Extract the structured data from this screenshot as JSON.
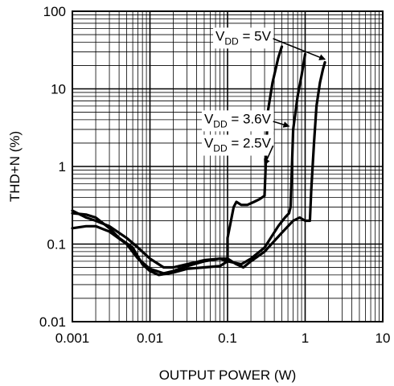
{
  "chart_data": {
    "type": "line",
    "xlabel": "OUTPUT POWER (W)",
    "ylabel": "THD+N (%)",
    "xscale": "log",
    "yscale": "log",
    "xlim": [
      0.001,
      10
    ],
    "ylim": [
      0.01,
      100
    ],
    "grid": true,
    "xticks": [
      {
        "value": 0.001,
        "label": "0.001"
      },
      {
        "value": 0.01,
        "label": "0.01"
      },
      {
        "value": 0.1,
        "label": "0.1"
      },
      {
        "value": 1,
        "label": "1"
      },
      {
        "value": 10,
        "label": "10"
      }
    ],
    "yticks": [
      {
        "value": 0.01,
        "label": "0.01"
      },
      {
        "value": 0.1,
        "label": "0.1"
      },
      {
        "value": 1,
        "label": "1"
      },
      {
        "value": 10,
        "label": "10"
      },
      {
        "value": 100,
        "label": "100"
      }
    ],
    "series": [
      {
        "name_main": "V",
        "name_sub": "DD",
        "name_rest": " = 5V",
        "label_at": [
          0.07,
          42
        ],
        "arrow_to": [
          1.8,
          24
        ],
        "points": [
          [
            0.001,
            0.16
          ],
          [
            0.0015,
            0.17
          ],
          [
            0.002,
            0.17
          ],
          [
            0.003,
            0.145
          ],
          [
            0.005,
            0.1
          ],
          [
            0.007,
            0.065
          ],
          [
            0.01,
            0.048
          ],
          [
            0.015,
            0.042
          ],
          [
            0.02,
            0.045
          ],
          [
            0.03,
            0.052
          ],
          [
            0.05,
            0.06
          ],
          [
            0.08,
            0.065
          ],
          [
            0.1,
            0.065
          ],
          [
            0.13,
            0.055
          ],
          [
            0.16,
            0.05
          ],
          [
            0.2,
            0.06
          ],
          [
            0.3,
            0.08
          ],
          [
            0.5,
            0.14
          ],
          [
            0.7,
            0.2
          ],
          [
            0.85,
            0.22
          ],
          [
            1.0,
            0.2
          ],
          [
            1.15,
            0.2
          ],
          [
            1.2,
            0.5
          ],
          [
            1.3,
            2.0
          ],
          [
            1.4,
            6
          ],
          [
            1.55,
            12
          ],
          [
            1.7,
            18
          ],
          [
            1.8,
            22
          ]
        ]
      },
      {
        "name_main": "V",
        "name_sub": "DD",
        "name_rest": " = 3.6V",
        "label_at": [
          0.05,
          3.6
        ],
        "arrow_to": [
          0.62,
          3.3
        ],
        "points": [
          [
            0.001,
            0.27
          ],
          [
            0.0015,
            0.22
          ],
          [
            0.002,
            0.2
          ],
          [
            0.003,
            0.17
          ],
          [
            0.005,
            0.12
          ],
          [
            0.007,
            0.09
          ],
          [
            0.01,
            0.065
          ],
          [
            0.015,
            0.05
          ],
          [
            0.02,
            0.05
          ],
          [
            0.03,
            0.055
          ],
          [
            0.05,
            0.062
          ],
          [
            0.08,
            0.065
          ],
          [
            0.1,
            0.06
          ],
          [
            0.15,
            0.055
          ],
          [
            0.2,
            0.065
          ],
          [
            0.3,
            0.09
          ],
          [
            0.45,
            0.17
          ],
          [
            0.55,
            0.22
          ],
          [
            0.62,
            0.25
          ],
          [
            0.65,
            0.3
          ],
          [
            0.7,
            3
          ],
          [
            0.8,
            8
          ],
          [
            0.9,
            15
          ],
          [
            1.0,
            28
          ]
        ]
      },
      {
        "name_main": "V",
        "name_sub": "DD",
        "name_rest": " = 2.5V",
        "label_at": [
          0.05,
          1.75
        ],
        "arrow_to": [
          0.3,
          1.05
        ],
        "points": [
          [
            0.001,
            0.25
          ],
          [
            0.0015,
            0.24
          ],
          [
            0.002,
            0.22
          ],
          [
            0.003,
            0.16
          ],
          [
            0.004,
            0.12
          ],
          [
            0.006,
            0.09
          ],
          [
            0.008,
            0.055
          ],
          [
            0.01,
            0.045
          ],
          [
            0.013,
            0.04
          ],
          [
            0.02,
            0.043
          ],
          [
            0.03,
            0.048
          ],
          [
            0.05,
            0.05
          ],
          [
            0.08,
            0.052
          ],
          [
            0.1,
            0.06
          ],
          [
            0.1,
            0.12
          ],
          [
            0.12,
            0.3
          ],
          [
            0.13,
            0.35
          ],
          [
            0.15,
            0.32
          ],
          [
            0.18,
            0.32
          ],
          [
            0.22,
            0.35
          ],
          [
            0.26,
            0.38
          ],
          [
            0.3,
            0.42
          ],
          [
            0.31,
            1.0
          ],
          [
            0.33,
            5
          ],
          [
            0.38,
            12
          ],
          [
            0.45,
            25
          ],
          [
            0.5,
            35
          ]
        ]
      }
    ]
  }
}
